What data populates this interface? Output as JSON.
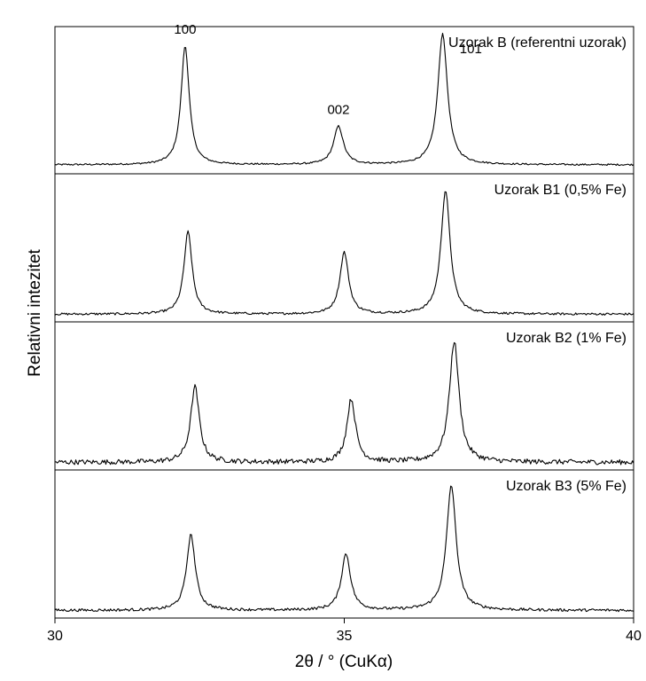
{
  "chart_data": {
    "type": "line",
    "xlabel": "2θ / ° (CuKα)",
    "ylabel": "Relativni intezitet",
    "xlim": [
      30,
      40
    ],
    "xticks": [
      "30",
      "35",
      "40"
    ],
    "xtick_values": [
      30,
      35,
      40
    ],
    "y_ticks_shown": false,
    "grid": false,
    "panels": [
      {
        "label": "Uzorak B (referentni uzorak)",
        "baseline": 0.04,
        "noise": 0.006,
        "peak_labels": [
          {
            "text": "100",
            "x": 32.25
          },
          {
            "text": "002",
            "x": 34.9
          },
          {
            "text": "101",
            "x": 36.75
          }
        ],
        "peaks": [
          {
            "x": 32.25,
            "height": 0.87,
            "width": 0.085
          },
          {
            "x": 34.9,
            "height": 0.28,
            "width": 0.1
          },
          {
            "x": 36.7,
            "height": 0.96,
            "width": 0.1
          }
        ]
      },
      {
        "label": "Uzorak B1 (0,5% Fe)",
        "baseline": 0.03,
        "noise": 0.008,
        "peaks": [
          {
            "x": 32.3,
            "height": 0.6,
            "width": 0.085
          },
          {
            "x": 35.0,
            "height": 0.45,
            "width": 0.09
          },
          {
            "x": 36.75,
            "height": 0.9,
            "width": 0.095
          }
        ]
      },
      {
        "label": "Uzorak B2 (1% Fe)",
        "baseline": 0.03,
        "noise": 0.018,
        "peaks": [
          {
            "x": 32.42,
            "height": 0.55,
            "width": 0.09
          },
          {
            "x": 35.12,
            "height": 0.46,
            "width": 0.09
          },
          {
            "x": 36.9,
            "height": 0.88,
            "width": 0.1
          }
        ]
      },
      {
        "label": "Uzorak B3 (5% Fe)",
        "baseline": 0.03,
        "noise": 0.01,
        "peaks": [
          {
            "x": 32.35,
            "height": 0.55,
            "width": 0.09
          },
          {
            "x": 35.03,
            "height": 0.41,
            "width": 0.095
          },
          {
            "x": 36.85,
            "height": 0.91,
            "width": 0.1
          }
        ]
      }
    ]
  }
}
